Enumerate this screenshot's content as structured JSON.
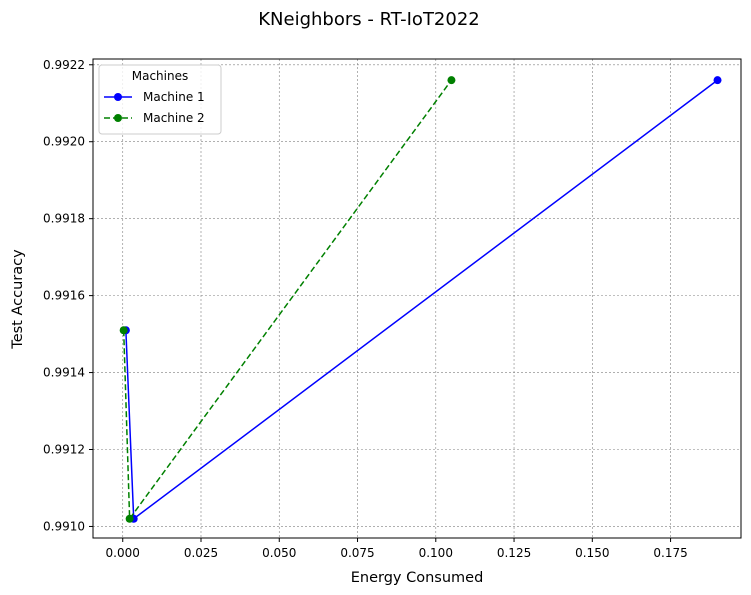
{
  "chart_data": {
    "type": "line",
    "title": "KNeighbors - RT-IoT2022",
    "xlabel": "Energy Consumed",
    "ylabel": "Test Accuracy",
    "xlim": [
      -0.0095,
      0.1975
    ],
    "ylim": [
      0.99097,
      0.992215
    ],
    "xticks": [
      0.0,
      0.025,
      0.05,
      0.075,
      0.1,
      0.125,
      0.15,
      0.175
    ],
    "xtick_labels": [
      "0.000",
      "0.025",
      "0.050",
      "0.075",
      "0.100",
      "0.125",
      "0.150",
      "0.175"
    ],
    "yticks": [
      0.991,
      0.9912,
      0.9914,
      0.9916,
      0.9918,
      0.992,
      0.9922
    ],
    "ytick_labels": [
      "0.9910",
      "0.9912",
      "0.9914",
      "0.9916",
      "0.9918",
      "0.9920",
      "0.9922"
    ],
    "grid": true,
    "legend": {
      "title": "Machines",
      "position": "top-left"
    },
    "series": [
      {
        "name": "Machine 1",
        "color": "#0000ff",
        "linestyle": "solid",
        "marker": "circle",
        "x": [
          0.001,
          0.0035,
          0.19
        ],
        "y": [
          0.99151,
          0.99102,
          0.99216
        ]
      },
      {
        "name": "Machine 2",
        "color": "#008000",
        "linestyle": "dashed",
        "marker": "circle",
        "x": [
          0.0003,
          0.0022,
          0.105
        ],
        "y": [
          0.99151,
          0.99102,
          0.99216
        ]
      }
    ]
  }
}
